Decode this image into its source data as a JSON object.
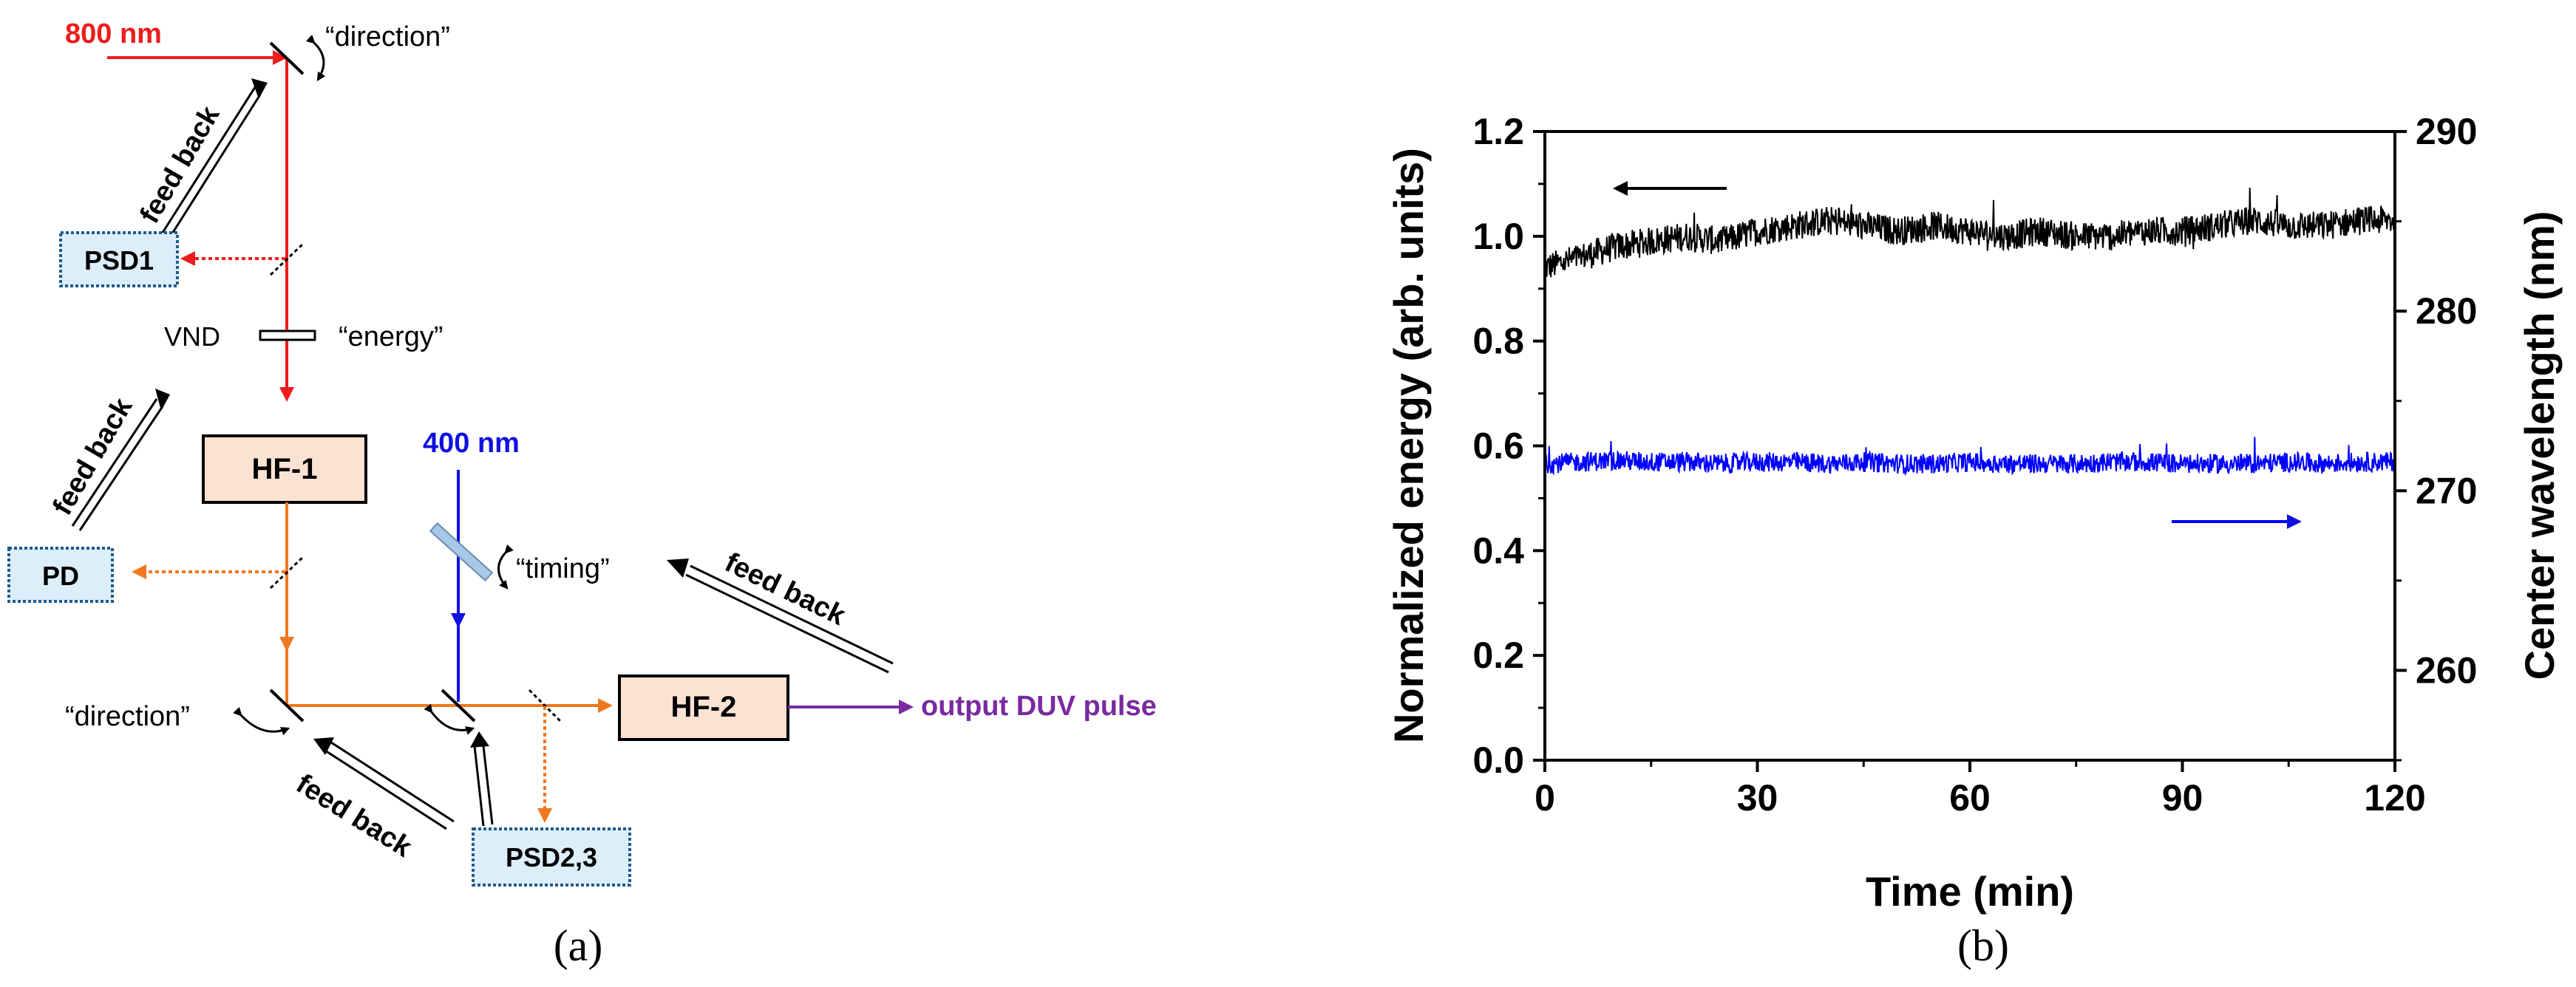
{
  "diagram": {
    "caption": "(a)",
    "labels": {
      "nm800": "800 nm",
      "nm400": "400 nm",
      "direction_top": "“direction”",
      "direction_bottom": "“direction”",
      "energy": "“energy”",
      "timing": "“timing”",
      "vnd": "VND",
      "output": "output DUV pulse",
      "feedback": "feed back"
    },
    "boxes": {
      "psd1": "PSD1",
      "pd": "PD",
      "hf1": "HF-1",
      "hf2": "HF-2",
      "psd23": "PSD2,3"
    },
    "colors": {
      "red": "#ee1c1c",
      "blue": "#1010e0",
      "orange": "#f07820",
      "purple": "#7a2aa0",
      "hf_fill": "#fbe2d2",
      "psd_fill": "#dceefa",
      "psd_border": "#1e5a8c"
    }
  },
  "chart_caption": "(b)",
  "chart_data": {
    "type": "line",
    "xlabel": "Time (min)",
    "ylabel_left": "Normalized energy (arb. units)",
    "ylabel_right": "Center wavelength (nm)",
    "xlim": [
      0,
      120
    ],
    "ylim_left": [
      0.0,
      1.2
    ],
    "ylim_right": [
      255,
      290
    ],
    "x_ticks": [
      "0",
      "30",
      "60",
      "90",
      "120"
    ],
    "y_ticks_left": [
      "0.0",
      "0.2",
      "0.4",
      "0.6",
      "0.8",
      "1.0",
      "1.2"
    ],
    "y_ticks_right": [
      "260",
      "270",
      "280",
      "290"
    ],
    "grid": false,
    "series": [
      {
        "color": "#000000",
        "axis": "left",
        "x": [
          0,
          5,
          10,
          15,
          20,
          25,
          30,
          35,
          40,
          45,
          50,
          55,
          60,
          65,
          70,
          75,
          80,
          85,
          90,
          95,
          100,
          105,
          110,
          115,
          120
        ],
        "y": [
          0.94,
          0.96,
          0.98,
          0.99,
          1.0,
          0.99,
          1.01,
          1.02,
          1.03,
          1.02,
          1.01,
          1.02,
          1.01,
          1.0,
          1.01,
          1.0,
          1.0,
          1.01,
          1.01,
          1.02,
          1.03,
          1.02,
          1.02,
          1.03,
          1.03
        ]
      },
      {
        "color": "#0000ff",
        "axis": "right",
        "x": [
          0,
          5,
          10,
          15,
          20,
          25,
          30,
          35,
          40,
          45,
          50,
          55,
          60,
          65,
          70,
          75,
          80,
          85,
          90,
          95,
          100,
          105,
          110,
          115,
          120
        ],
        "y": [
          271.5,
          271.6,
          271.7,
          271.6,
          271.6,
          271.5,
          271.6,
          271.6,
          271.5,
          271.6,
          271.5,
          271.5,
          271.6,
          271.5,
          271.5,
          271.5,
          271.6,
          271.6,
          271.5,
          271.5,
          271.5,
          271.6,
          271.5,
          271.6,
          271.6
        ]
      }
    ]
  }
}
